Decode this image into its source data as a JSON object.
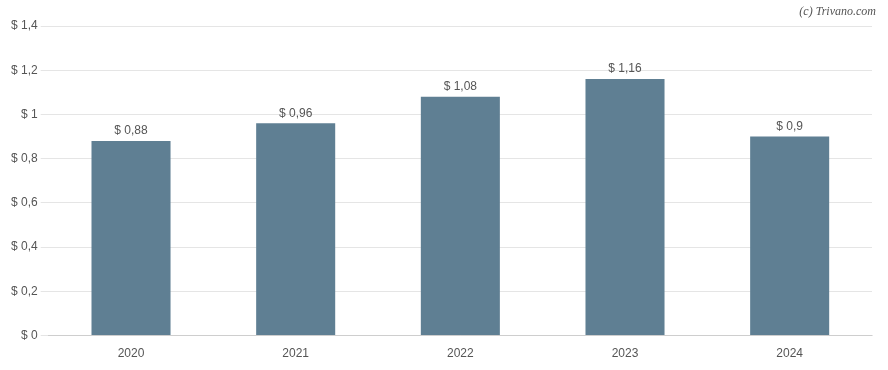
{
  "chart_data": {
    "type": "bar",
    "categories": [
      "2020",
      "2021",
      "2022",
      "2023",
      "2024"
    ],
    "values": [
      0.88,
      0.96,
      1.08,
      1.16,
      0.9
    ],
    "value_labels": [
      "$ 0,88",
      "$ 0,96",
      "$ 1,08",
      "$ 1,16",
      "$ 0,9"
    ],
    "data_labels": true,
    "color": "#5f7f93",
    "ylim": [
      0,
      1.4
    ],
    "yticks": [
      {
        "value": 0,
        "label": "$ 0"
      },
      {
        "value": 0.2,
        "label": "$ 0,2"
      },
      {
        "value": 0.4,
        "label": "$ 0,4"
      },
      {
        "value": 0.6,
        "label": "$ 0,6"
      },
      {
        "value": 0.8,
        "label": "$ 0,8"
      },
      {
        "value": 1.0,
        "label": "$ 1"
      },
      {
        "value": 1.2,
        "label": "$ 1,2"
      },
      {
        "value": 1.4,
        "label": "$ 1,4"
      }
    ],
    "grid": true,
    "annotations": [
      "(c) Trivano.com"
    ]
  }
}
